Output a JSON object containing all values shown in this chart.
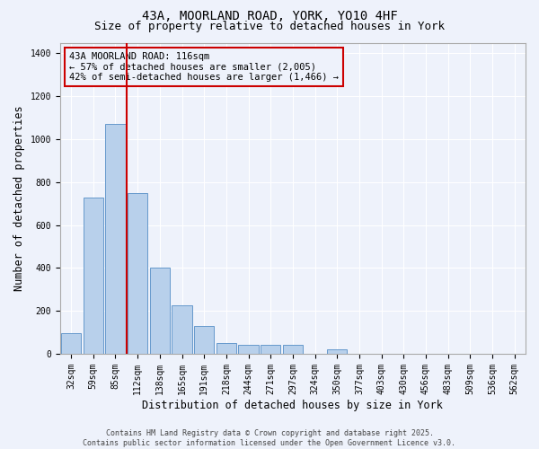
{
  "title_line1": "43A, MOORLAND ROAD, YORK, YO10 4HF",
  "title_line2": "Size of property relative to detached houses in York",
  "xlabel": "Distribution of detached houses by size in York",
  "ylabel": "Number of detached properties",
  "categories": [
    "32sqm",
    "59sqm",
    "85sqm",
    "112sqm",
    "138sqm",
    "165sqm",
    "191sqm",
    "218sqm",
    "244sqm",
    "271sqm",
    "297sqm",
    "324sqm",
    "350sqm",
    "377sqm",
    "403sqm",
    "430sqm",
    "456sqm",
    "483sqm",
    "509sqm",
    "536sqm",
    "562sqm"
  ],
  "bar_heights": [
    95,
    730,
    1070,
    750,
    400,
    225,
    130,
    50,
    40,
    40,
    40,
    0,
    20,
    0,
    0,
    0,
    0,
    0,
    0,
    0,
    0
  ],
  "bar_color": "#b8d0eb",
  "bar_edgecolor": "#6699cc",
  "vline_x": 2.5,
  "vline_color": "#cc0000",
  "annotation_text": "43A MOORLAND ROAD: 116sqm\n← 57% of detached houses are smaller (2,005)\n42% of semi-detached houses are larger (1,466) →",
  "annotation_box_color": "#cc0000",
  "ylim": [
    0,
    1450
  ],
  "yticks": [
    0,
    200,
    400,
    600,
    800,
    1000,
    1200,
    1400
  ],
  "footer_text": "Contains HM Land Registry data © Crown copyright and database right 2025.\nContains public sector information licensed under the Open Government Licence v3.0.",
  "bg_color": "#eef2fb",
  "grid_color": "#ffffff",
  "title_fontsize": 10,
  "subtitle_fontsize": 9,
  "axis_label_fontsize": 8.5,
  "tick_fontsize": 7,
  "footer_fontsize": 6
}
